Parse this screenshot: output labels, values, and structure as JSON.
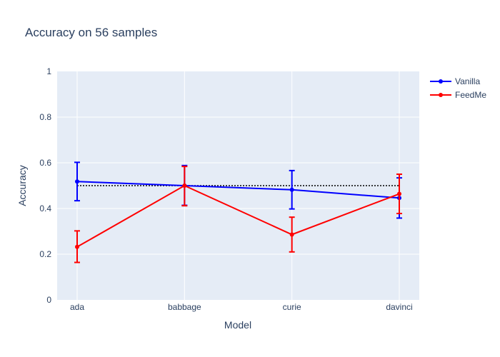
{
  "chart_data": {
    "type": "line",
    "title": "Accuracy on 56 samples",
    "xlabel": "Model",
    "ylabel": "Accuracy",
    "categories": [
      "ada",
      "babbage",
      "curie",
      "davinci"
    ],
    "ylim": [
      0,
      1
    ],
    "yticks": [
      0,
      0.2,
      0.4,
      0.6,
      0.8,
      1
    ],
    "ytick_labels": [
      "0",
      "0.2",
      "0.4",
      "0.6",
      "0.8",
      "1"
    ],
    "grid": true,
    "legend_position": "top-right",
    "reference_line": {
      "value": 0.5,
      "style": "dotted",
      "color": "#000000"
    },
    "series": [
      {
        "name": "Vanilla",
        "color": "#0000ff",
        "values": [
          0.518,
          0.5,
          0.482,
          0.446
        ],
        "error_low": [
          0.434,
          0.414,
          0.398,
          0.358
        ],
        "error_high": [
          0.602,
          0.588,
          0.566,
          0.534
        ]
      },
      {
        "name": "FeedMe",
        "color": "#ff0000",
        "values": [
          0.232,
          0.5,
          0.286,
          0.464
        ],
        "error_low": [
          0.164,
          0.412,
          0.21,
          0.378
        ],
        "error_high": [
          0.302,
          0.584,
          0.362,
          0.55
        ]
      }
    ]
  }
}
